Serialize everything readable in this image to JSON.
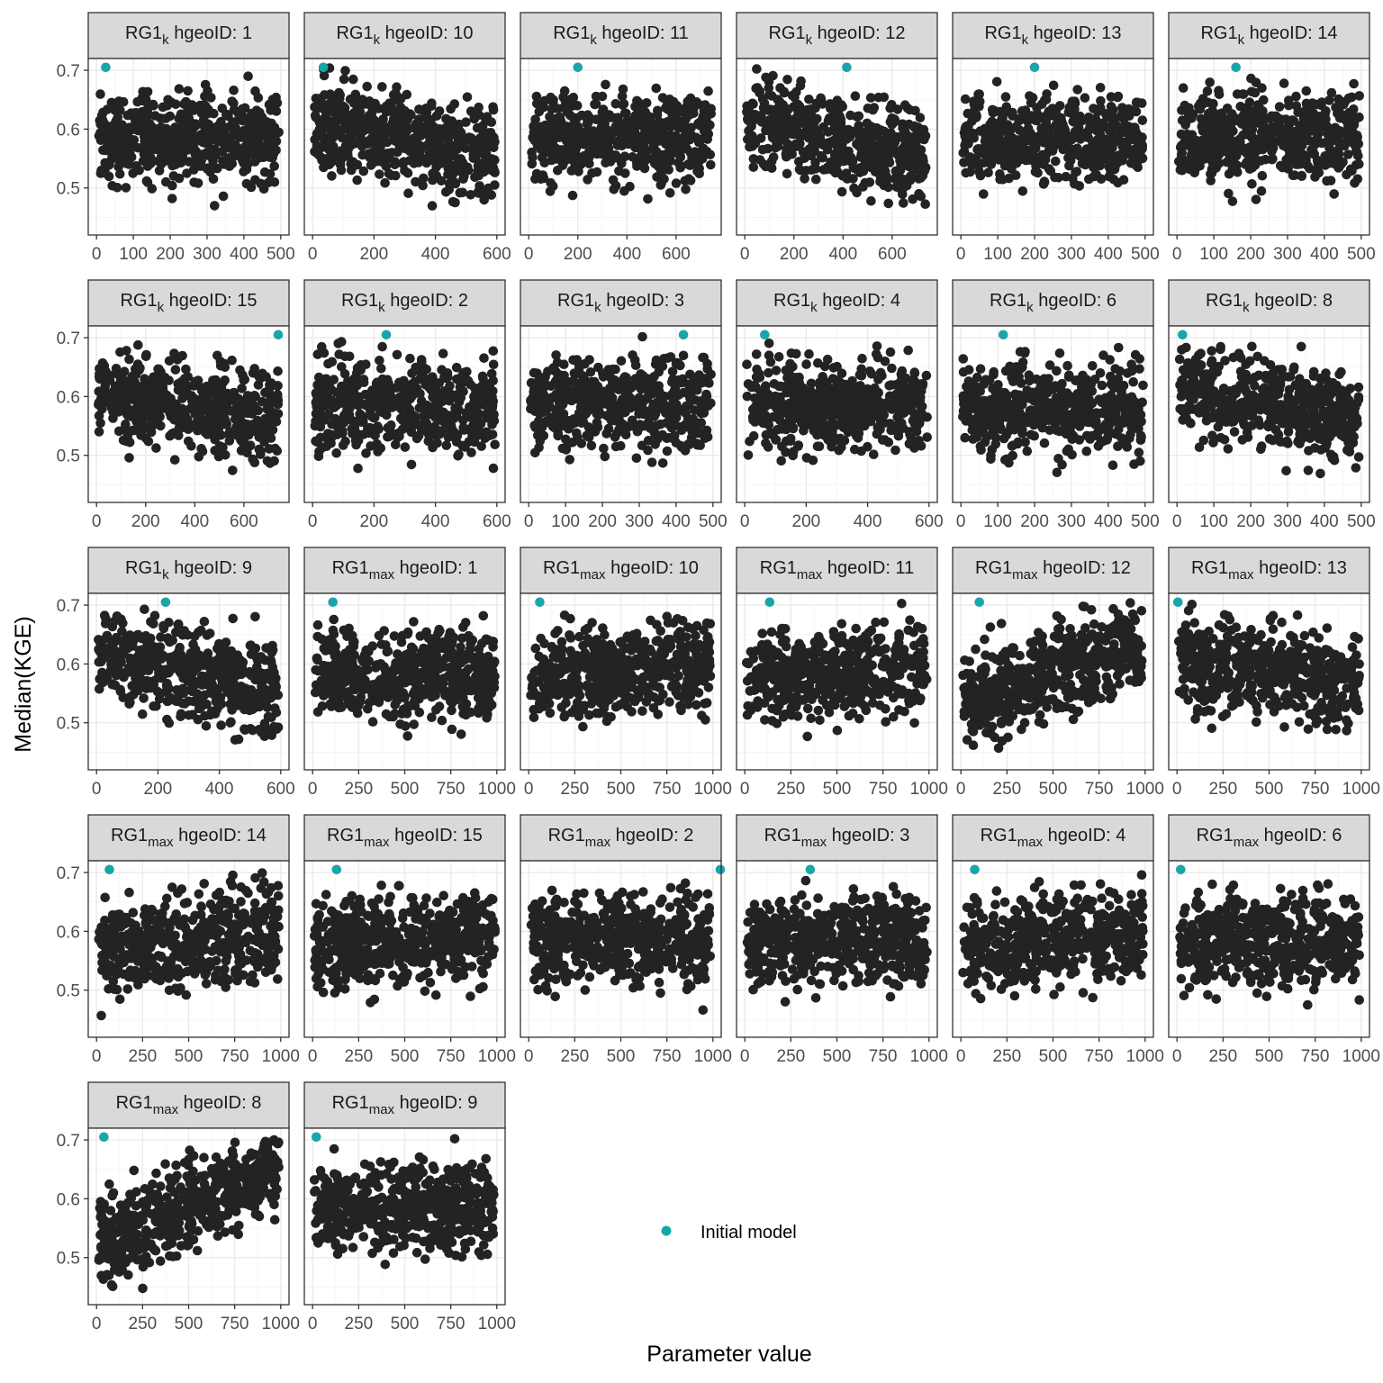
{
  "chart_data": {
    "type": "scatter",
    "xlabel": "Parameter value",
    "ylabel": "Median(KGE)",
    "ylim": [
      0.42,
      0.72
    ],
    "yticks": [
      0.5,
      0.6,
      0.7
    ],
    "grid": true,
    "legend": {
      "position": "bottom-right",
      "entries": [
        "Initial model"
      ]
    },
    "colors": {
      "points": "#232323",
      "initial_model": "#1aa5a8"
    },
    "panels": [
      {
        "param": "RG1",
        "sub": "k",
        "suffix": " hgeoID: 1",
        "xlim": [
          0,
          500
        ],
        "xticks": [
          0,
          100,
          200,
          300,
          400,
          500
        ],
        "initial": {
          "x": 25,
          "y": 0.705
        },
        "trend": 0
      },
      {
        "param": "RG1",
        "sub": "k",
        "suffix": " hgeoID: 10",
        "xlim": [
          0,
          600
        ],
        "xticks": [
          0,
          200,
          400,
          600
        ],
        "initial": {
          "x": 35,
          "y": 0.705
        },
        "trend": 0.06
      },
      {
        "param": "RG1",
        "sub": "k",
        "suffix": " hgeoID: 11",
        "xlim": [
          0,
          750
        ],
        "xticks": [
          0,
          200,
          400,
          600
        ],
        "initial": {
          "x": 200,
          "y": 0.705
        },
        "trend": 0
      },
      {
        "param": "RG1",
        "sub": "k",
        "suffix": " hgeoID: 12",
        "xlim": [
          0,
          750
        ],
        "xticks": [
          0,
          200,
          400,
          600
        ],
        "initial": {
          "x": 415,
          "y": 0.705
        },
        "trend": 0.08
      },
      {
        "param": "RG1",
        "sub": "k",
        "suffix": " hgeoID: 13",
        "xlim": [
          0,
          500
        ],
        "xticks": [
          0,
          100,
          200,
          300,
          400,
          500
        ],
        "initial": {
          "x": 200,
          "y": 0.705
        },
        "trend": 0
      },
      {
        "param": "RG1",
        "sub": "k",
        "suffix": " hgeoID: 14",
        "xlim": [
          0,
          500
        ],
        "xticks": [
          0,
          100,
          200,
          300,
          400,
          500
        ],
        "initial": {
          "x": 160,
          "y": 0.705
        },
        "trend": 0
      },
      {
        "param": "RG1",
        "sub": "k",
        "suffix": " hgeoID: 15",
        "xlim": [
          0,
          750
        ],
        "xticks": [
          0,
          200,
          400,
          600
        ],
        "initial": {
          "x": 740,
          "y": 0.705
        },
        "trend": 0.04
      },
      {
        "param": "RG1",
        "sub": "k",
        "suffix": " hgeoID: 2",
        "xlim": [
          0,
          600
        ],
        "xticks": [
          0,
          200,
          400,
          600
        ],
        "initial": {
          "x": 240,
          "y": 0.705
        },
        "trend": 0.02
      },
      {
        "param": "RG1",
        "sub": "k",
        "suffix": " hgeoID: 3",
        "xlim": [
          0,
          500
        ],
        "xticks": [
          0,
          100,
          200,
          300,
          400,
          500
        ],
        "initial": {
          "x": 420,
          "y": 0.705
        },
        "trend": 0
      },
      {
        "param": "RG1",
        "sub": "k",
        "suffix": " hgeoID: 4",
        "xlim": [
          0,
          600
        ],
        "xticks": [
          0,
          200,
          400,
          600
        ],
        "initial": {
          "x": 65,
          "y": 0.705
        },
        "trend": 0
      },
      {
        "param": "RG1",
        "sub": "k",
        "suffix": " hgeoID: 6",
        "xlim": [
          0,
          500
        ],
        "xticks": [
          0,
          100,
          200,
          300,
          400,
          500
        ],
        "initial": {
          "x": 115,
          "y": 0.705
        },
        "trend": 0
      },
      {
        "param": "RG1",
        "sub": "k",
        "suffix": " hgeoID: 8",
        "xlim": [
          0,
          500
        ],
        "xticks": [
          0,
          100,
          200,
          300,
          400,
          500
        ],
        "initial": {
          "x": 15,
          "y": 0.705
        },
        "trend": 0.06
      },
      {
        "param": "RG1",
        "sub": "k",
        "suffix": " hgeoID: 9",
        "xlim": [
          0,
          600
        ],
        "xticks": [
          0,
          200,
          400,
          600
        ],
        "initial": {
          "x": 225,
          "y": 0.705
        },
        "trend": 0.06
      },
      {
        "param": "RG1",
        "sub": "max",
        "suffix": " hgeoID: 1",
        "xlim": [
          0,
          1000
        ],
        "xticks": [
          0,
          250,
          500,
          750,
          1000
        ],
        "initial": {
          "x": 110,
          "y": 0.705
        },
        "trend": 0
      },
      {
        "param": "RG1",
        "sub": "max",
        "suffix": " hgeoID: 10",
        "xlim": [
          0,
          1000
        ],
        "xticks": [
          0,
          250,
          500,
          750,
          1000
        ],
        "initial": {
          "x": 60,
          "y": 0.705
        },
        "trend": -0.03
      },
      {
        "param": "RG1",
        "sub": "max",
        "suffix": " hgeoID: 11",
        "xlim": [
          0,
          1000
        ],
        "xticks": [
          0,
          250,
          500,
          750,
          1000
        ],
        "initial": {
          "x": 135,
          "y": 0.705
        },
        "trend": -0.02
      },
      {
        "param": "RG1",
        "sub": "max",
        "suffix": " hgeoID: 12",
        "xlim": [
          0,
          1000
        ],
        "xticks": [
          0,
          250,
          500,
          750,
          1000
        ],
        "initial": {
          "x": 100,
          "y": 0.705
        },
        "trend": -0.1
      },
      {
        "param": "RG1",
        "sub": "max",
        "suffix": " hgeoID: 13",
        "xlim": [
          0,
          1000
        ],
        "xticks": [
          0,
          250,
          500,
          750,
          1000
        ],
        "initial": {
          "x": 5,
          "y": 0.705
        },
        "trend": 0.04
      },
      {
        "param": "RG1",
        "sub": "max",
        "suffix": " hgeoID: 14",
        "xlim": [
          0,
          1000
        ],
        "xticks": [
          0,
          250,
          500,
          750,
          1000
        ],
        "initial": {
          "x": 70,
          "y": 0.705
        },
        "trend": -0.04
      },
      {
        "param": "RG1",
        "sub": "max",
        "suffix": " hgeoID: 15",
        "xlim": [
          0,
          1000
        ],
        "xticks": [
          0,
          250,
          500,
          750,
          1000
        ],
        "initial": {
          "x": 130,
          "y": 0.705
        },
        "trend": -0.02
      },
      {
        "param": "RG1",
        "sub": "max",
        "suffix": " hgeoID: 2",
        "xlim": [
          0,
          1000
        ],
        "xticks": [
          0,
          250,
          500,
          750,
          1000
        ],
        "initial": {
          "x": 1040,
          "y": 0.705
        },
        "trend": 0
      },
      {
        "param": "RG1",
        "sub": "max",
        "suffix": " hgeoID: 3",
        "xlim": [
          0,
          1000
        ],
        "xticks": [
          0,
          250,
          500,
          750,
          1000
        ],
        "initial": {
          "x": 355,
          "y": 0.705
        },
        "trend": 0
      },
      {
        "param": "RG1",
        "sub": "max",
        "suffix": " hgeoID: 4",
        "xlim": [
          0,
          1000
        ],
        "xticks": [
          0,
          250,
          500,
          750,
          1000
        ],
        "initial": {
          "x": 75,
          "y": 0.705
        },
        "trend": -0.02
      },
      {
        "param": "RG1",
        "sub": "max",
        "suffix": " hgeoID: 6",
        "xlim": [
          0,
          1000
        ],
        "xticks": [
          0,
          250,
          500,
          750,
          1000
        ],
        "initial": {
          "x": 20,
          "y": 0.705
        },
        "trend": 0
      },
      {
        "param": "RG1",
        "sub": "max",
        "suffix": " hgeoID: 8",
        "xlim": [
          0,
          1000
        ],
        "xticks": [
          0,
          250,
          500,
          750,
          1000
        ],
        "initial": {
          "x": 40,
          "y": 0.705
        },
        "trend": -0.12
      },
      {
        "param": "RG1",
        "sub": "max",
        "suffix": " hgeoID: 9",
        "xlim": [
          0,
          1000
        ],
        "xticks": [
          0,
          250,
          500,
          750,
          1000
        ],
        "initial": {
          "x": 20,
          "y": 0.705
        },
        "trend": 0
      }
    ]
  }
}
